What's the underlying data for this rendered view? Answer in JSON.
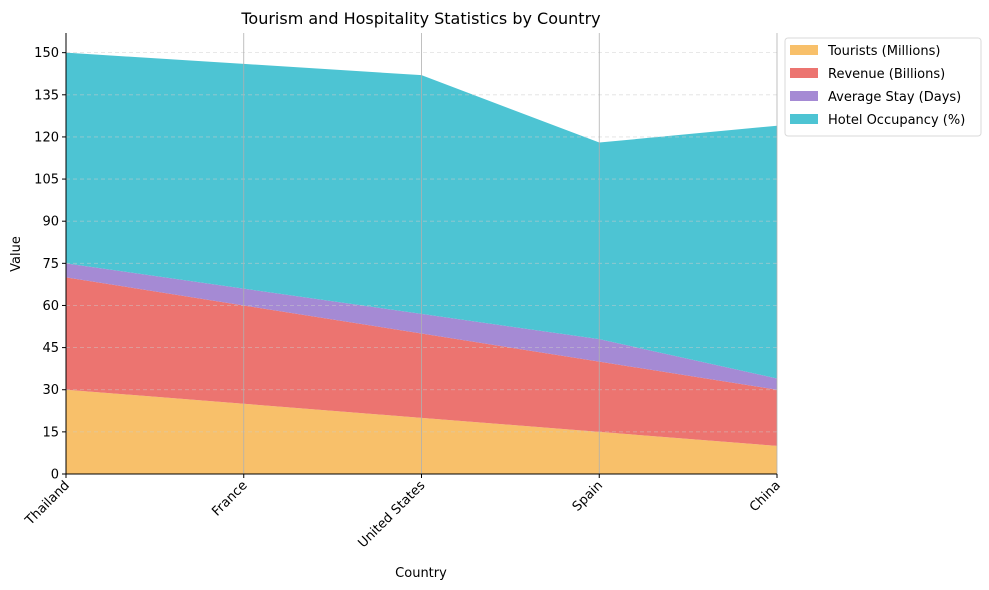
{
  "chart_data": {
    "type": "area",
    "stacked": true,
    "title": "Tourism and Hospitality Statistics by Country",
    "xlabel": "Country",
    "ylabel": "Value",
    "categories": [
      "Thailand",
      "France",
      "United States",
      "Spain",
      "China"
    ],
    "series": [
      {
        "name": "Tourists (Millions)",
        "values": [
          30,
          25,
          20,
          15,
          10
        ],
        "color": "#F8C06A"
      },
      {
        "name": "Revenue (Billions)",
        "values": [
          40,
          35,
          30,
          25,
          20
        ],
        "color": "#EC7470"
      },
      {
        "name": "Average Stay (Days)",
        "values": [
          5,
          6,
          7,
          8,
          4
        ],
        "color": "#A58AD4"
      },
      {
        "name": "Hotel Occupancy (%)",
        "values": [
          75,
          80,
          85,
          70,
          90
        ],
        "color": "#4DC4D3"
      }
    ],
    "ylim": [
      0,
      157
    ],
    "yticks": [
      0,
      15,
      30,
      45,
      60,
      75,
      90,
      105,
      120,
      135,
      150
    ],
    "grid": {
      "vertical": true,
      "horizontal_dashed": true
    },
    "legend_position": "outside-top-right"
  }
}
